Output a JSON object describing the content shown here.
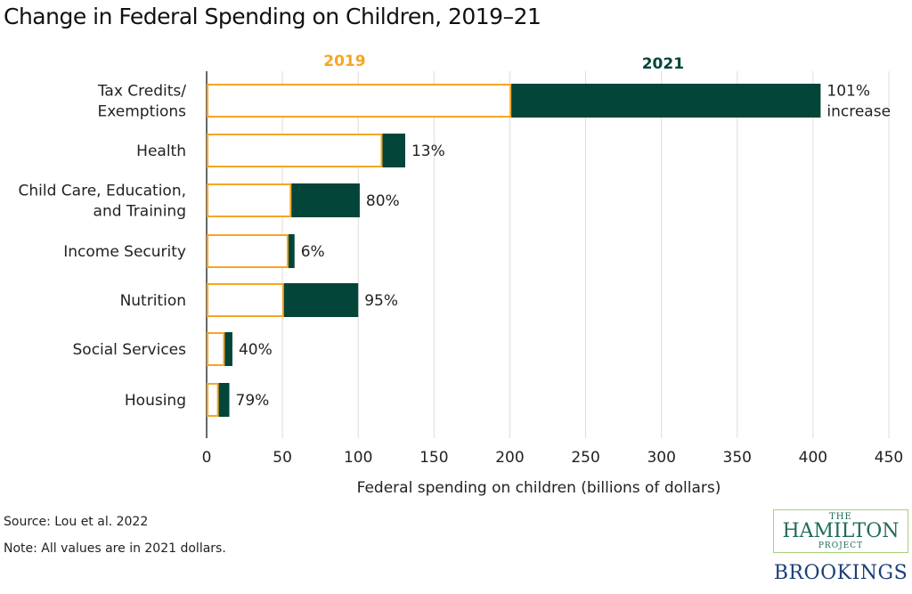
{
  "chart_data": {
    "type": "bar",
    "orientation": "horizontal",
    "stacked_overlay": true,
    "title": "Change in Federal Spending on Children, 2019–21",
    "xlabel": "Federal spending on children (billions of dollars)",
    "ylabel": "",
    "xlim": [
      0,
      450
    ],
    "xticks": [
      0,
      50,
      100,
      150,
      200,
      250,
      300,
      350,
      400,
      450
    ],
    "grid": "vertical",
    "legend_placement": "top",
    "categories": [
      "Tax Credits/\nExemptions",
      "Health",
      "Child Care, Education,\nand Training",
      "Income Security",
      "Nutrition",
      "Social Services",
      "Housing"
    ],
    "series": [
      {
        "name": "2019",
        "color": "#f5a623",
        "values": [
          201,
          116,
          56,
          54,
          51,
          12,
          8
        ]
      },
      {
        "name": "2021",
        "color": "#04453a",
        "values": [
          405,
          131,
          101,
          58,
          100,
          17,
          15
        ]
      }
    ],
    "data_labels": [
      "101%\nincrease",
      "13%",
      "80%",
      "6%",
      "95%",
      "40%",
      "79%"
    ]
  },
  "source": "Source: Lou et al. 2022",
  "note": "Note: All values are in 2021 dollars.",
  "logo": {
    "the": "THE",
    "hamilton": "HAMILTON",
    "project": "PROJECT",
    "brookings": "BROOKINGS"
  }
}
